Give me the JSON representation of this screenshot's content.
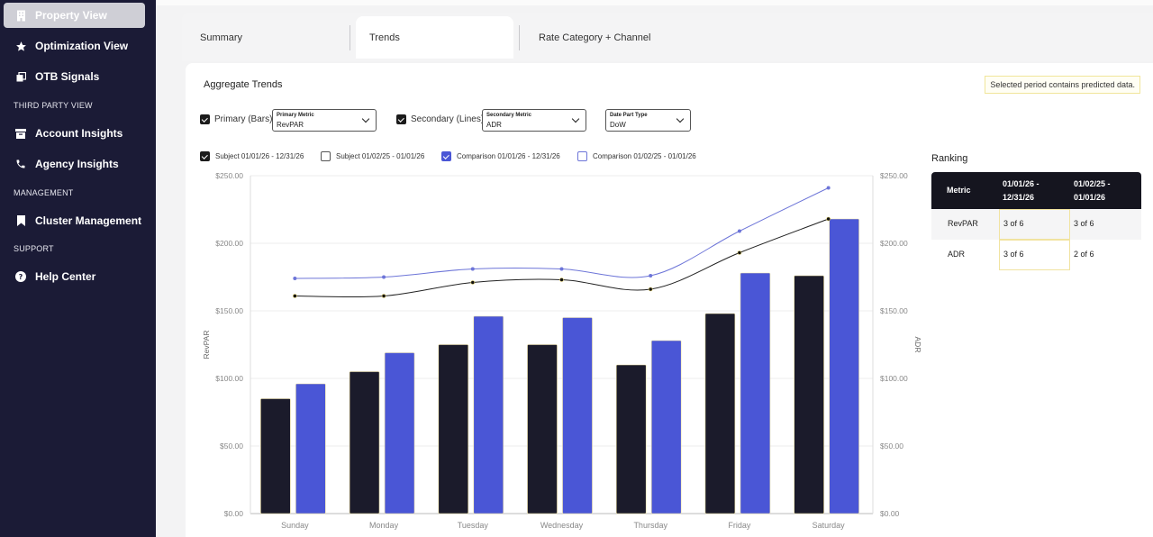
{
  "sidebar": {
    "items": [
      {
        "label": "Property View",
        "icon": "building-icon"
      },
      {
        "label": "Optimization View",
        "icon": "star-icon"
      },
      {
        "label": "OTB Signals",
        "icon": "copy-icon"
      },
      {
        "label": "Account Insights",
        "icon": "archive-icon"
      },
      {
        "label": "Agency Insights",
        "icon": "phone-icon"
      },
      {
        "label": "Cluster Management",
        "icon": "bookmark-icon"
      },
      {
        "label": "Help Center",
        "icon": "help-icon"
      }
    ],
    "sections": [
      "THIRD PARTY VIEW",
      "MANAGEMENT",
      "SUPPORT"
    ]
  },
  "tabs": [
    "Summary",
    "Trends",
    "Rate Category + Channel"
  ],
  "panel": {
    "title": "Aggregate Trends",
    "notice": "Selected period contains predicted data."
  },
  "controls": {
    "primary_label": "Primary (Bars):",
    "primary_caption": "Primary Metric",
    "primary_value": "RevPAR",
    "secondary_label": "Secondary (Lines):",
    "secondary_caption": "Secondary Metric",
    "secondary_value": "ADR",
    "datepart_caption": "Date Part Type",
    "datepart_value": "DoW"
  },
  "legend": [
    "Subject 01/01/26 - 12/31/26",
    "Subject 01/02/25 - 01/01/26",
    "Comparison 01/01/26 - 12/31/26",
    "Comparison 01/02/25 - 01/01/26"
  ],
  "ranking": {
    "title": "Ranking",
    "headers": [
      "Metric",
      "01/01/26 - 12/31/26",
      "01/02/25 - 01/01/26"
    ],
    "rows": [
      [
        "RevPAR",
        "3 of 6",
        "3 of 6"
      ],
      [
        "ADR",
        "3 of 6",
        "2 of 6"
      ]
    ]
  },
  "colors": {
    "subject": "#1b1b2b",
    "comparison": "#4a56d6",
    "sidebar_bg": "#1b1b36"
  },
  "chart_data": {
    "type": "bar",
    "categories": [
      "Sunday",
      "Monday",
      "Tuesday",
      "Wednesday",
      "Thursday",
      "Friday",
      "Saturday"
    ],
    "series": [
      {
        "name": "Subject 01/01/26 - 12/31/26",
        "kind": "bar",
        "axis": "left",
        "values": [
          85,
          105,
          125,
          125,
          110,
          148,
          176
        ]
      },
      {
        "name": "Comparison 01/01/26 - 12/31/26",
        "kind": "bar",
        "axis": "left",
        "values": [
          96,
          119,
          146,
          145,
          128,
          178,
          218
        ]
      },
      {
        "name": "Subject 01/01/26 - 12/31/26",
        "kind": "line",
        "axis": "right",
        "values": [
          161,
          161,
          171,
          173,
          166,
          193,
          218
        ]
      },
      {
        "name": "Comparison 01/01/26 - 12/31/26",
        "kind": "line",
        "axis": "right",
        "values": [
          174,
          175,
          181,
          181,
          176,
          209,
          241
        ]
      }
    ],
    "ylabel": "RevPAR",
    "y2label": "ADR",
    "yticks": [
      "$0.00",
      "$50.00",
      "$100.00",
      "$150.00",
      "$200.00",
      "$250.00"
    ],
    "ylim": [
      0,
      250
    ],
    "y2lim": [
      0,
      250
    ],
    "grid": true
  }
}
